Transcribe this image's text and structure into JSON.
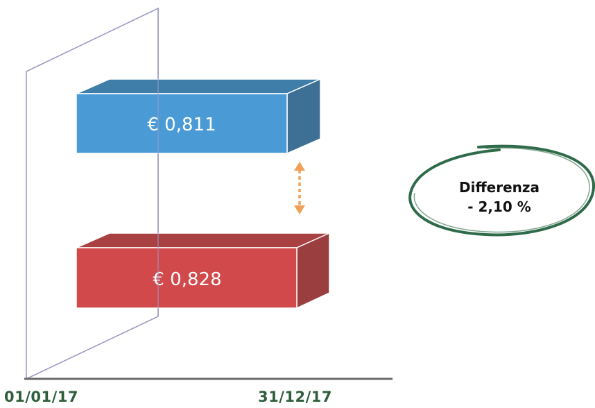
{
  "chart_data": {
    "type": "bar",
    "categories": [
      "01/01/17",
      "31/12/17"
    ],
    "series": [
      {
        "label": "€ 0,811",
        "value": 0.811,
        "color": "#4a9ad6",
        "top_color": "#3f7ea8",
        "side_color": "#3e6f95"
      },
      {
        "label": "€ 0,828",
        "value": 0.828,
        "color": "#d1494b",
        "top_color": "#a94041",
        "side_color": "#9a3e40"
      }
    ],
    "annotation": {
      "title": "Differenza",
      "value": "- 2,10 %"
    },
    "colors": {
      "axis": "#6a6a6a",
      "plane": "#9c9ac6",
      "arrow": "#f0a057",
      "ellipse": "#2f6b4a",
      "label": "#2f5e3c"
    }
  }
}
